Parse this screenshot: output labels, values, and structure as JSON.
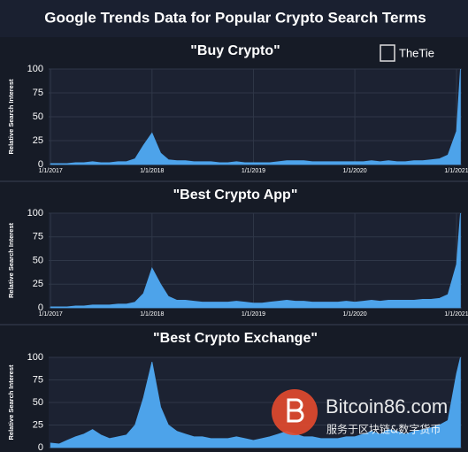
{
  "title": "Google Trends Data for Popular Crypto Search Terms",
  "logo": "TheTie",
  "watermark": {
    "site": "Bitcoin86.com",
    "tagline": "服务于区块链&数字货币"
  },
  "chart_data": [
    {
      "type": "area",
      "title": "\"Buy Crypto\"",
      "y_label": "Relative Search Interest",
      "color": "#4da3ea",
      "x": [
        "2017-01-01",
        "2017-02-01",
        "2017-03-01",
        "2017-04-01",
        "2017-05-01",
        "2017-06-01",
        "2017-07-01",
        "2017-08-01",
        "2017-09-01",
        "2017-10-01",
        "2017-11-01",
        "2017-12-01",
        "2018-01-01",
        "2018-02-01",
        "2018-03-01",
        "2018-04-01",
        "2018-05-01",
        "2018-06-01",
        "2018-07-01",
        "2018-08-01",
        "2018-09-01",
        "2018-10-01",
        "2018-11-01",
        "2018-12-01",
        "2019-01-01",
        "2019-02-01",
        "2019-03-01",
        "2019-04-01",
        "2019-05-01",
        "2019-06-01",
        "2019-07-01",
        "2019-08-01",
        "2019-09-01",
        "2019-10-01",
        "2019-11-01",
        "2019-12-01",
        "2020-01-01",
        "2020-02-01",
        "2020-03-01",
        "2020-04-01",
        "2020-05-01",
        "2020-06-01",
        "2020-07-01",
        "2020-08-01",
        "2020-09-01",
        "2020-10-01",
        "2020-11-01",
        "2020-12-01",
        "2021-01-01",
        "2021-01-15"
      ],
      "values": [
        1,
        1,
        1,
        2,
        2,
        3,
        2,
        2,
        3,
        3,
        6,
        20,
        33,
        12,
        5,
        4,
        4,
        3,
        3,
        3,
        2,
        2,
        3,
        2,
        2,
        2,
        2,
        3,
        4,
        4,
        4,
        3,
        3,
        3,
        3,
        3,
        3,
        3,
        4,
        3,
        4,
        3,
        3,
        4,
        4,
        5,
        6,
        10,
        35,
        100
      ],
      "xlim": [
        "2016-12-25",
        "2021-01-20"
      ],
      "xticks": [
        {
          "value": "2017-01-01",
          "label": "1/1/2017"
        },
        {
          "value": "2018-01-01",
          "label": "1/1/2018"
        },
        {
          "value": "2019-01-01",
          "label": "1/1/2019"
        },
        {
          "value": "2020-01-01",
          "label": "1/1/2020"
        },
        {
          "value": "2021-01-01",
          "label": "1/1/2021"
        }
      ],
      "ylim": [
        0,
        100
      ],
      "yticks": [
        0,
        25,
        50,
        75,
        100
      ],
      "grid": true
    },
    {
      "type": "area",
      "title": "\"Best Crypto App\"",
      "y_label": "Relative Search Interest",
      "color": "#4da3ea",
      "x": [
        "2017-01-01",
        "2017-02-01",
        "2017-03-01",
        "2017-04-01",
        "2017-05-01",
        "2017-06-01",
        "2017-07-01",
        "2017-08-01",
        "2017-09-01",
        "2017-10-01",
        "2017-11-01",
        "2017-12-01",
        "2018-01-01",
        "2018-02-01",
        "2018-03-01",
        "2018-04-01",
        "2018-05-01",
        "2018-06-01",
        "2018-07-01",
        "2018-08-01",
        "2018-09-01",
        "2018-10-01",
        "2018-11-01",
        "2018-12-01",
        "2019-01-01",
        "2019-02-01",
        "2019-03-01",
        "2019-04-01",
        "2019-05-01",
        "2019-06-01",
        "2019-07-01",
        "2019-08-01",
        "2019-09-01",
        "2019-10-01",
        "2019-11-01",
        "2019-12-01",
        "2020-01-01",
        "2020-02-01",
        "2020-03-01",
        "2020-04-01",
        "2020-05-01",
        "2020-06-01",
        "2020-07-01",
        "2020-08-01",
        "2020-09-01",
        "2020-10-01",
        "2020-11-01",
        "2020-12-01",
        "2021-01-01",
        "2021-01-15"
      ],
      "values": [
        1,
        1,
        1,
        2,
        2,
        3,
        3,
        3,
        4,
        4,
        6,
        15,
        42,
        25,
        12,
        8,
        8,
        7,
        6,
        6,
        6,
        6,
        7,
        6,
        5,
        5,
        6,
        7,
        8,
        7,
        7,
        6,
        6,
        6,
        6,
        7,
        6,
        7,
        8,
        7,
        8,
        8,
        8,
        8,
        9,
        9,
        10,
        14,
        46,
        100
      ],
      "xlim": [
        "2016-12-25",
        "2021-01-20"
      ],
      "xticks": [
        {
          "value": "2017-01-01",
          "label": "1/1/2017"
        },
        {
          "value": "2018-01-01",
          "label": "1/1/2018"
        },
        {
          "value": "2019-01-01",
          "label": "1/1/2019"
        },
        {
          "value": "2020-01-01",
          "label": "1/1/2020"
        },
        {
          "value": "2021-01-01",
          "label": "1/1/2021"
        }
      ],
      "ylim": [
        0,
        100
      ],
      "yticks": [
        0,
        25,
        50,
        75,
        100
      ],
      "grid": true
    },
    {
      "type": "area",
      "title": "\"Best Crypto Exchange\"",
      "y_label": "Relative Search Interest",
      "color": "#4da3ea",
      "x": [
        "2017-01-01",
        "2017-02-01",
        "2017-03-01",
        "2017-04-01",
        "2017-05-01",
        "2017-06-01",
        "2017-07-01",
        "2017-08-01",
        "2017-09-01",
        "2017-10-01",
        "2017-11-01",
        "2017-12-01",
        "2018-01-01",
        "2018-02-01",
        "2018-03-01",
        "2018-04-01",
        "2018-05-01",
        "2018-06-01",
        "2018-07-01",
        "2018-08-01",
        "2018-09-01",
        "2018-10-01",
        "2018-11-01",
        "2018-12-01",
        "2019-01-01",
        "2019-02-01",
        "2019-03-01",
        "2019-04-01",
        "2019-05-01",
        "2019-06-01",
        "2019-07-01",
        "2019-08-01",
        "2019-09-01",
        "2019-10-01",
        "2019-11-01",
        "2019-12-01",
        "2020-01-01",
        "2020-02-01",
        "2020-03-01",
        "2020-04-01",
        "2020-05-01",
        "2020-06-01",
        "2020-07-01",
        "2020-08-01",
        "2020-09-01",
        "2020-10-01",
        "2020-11-01",
        "2020-12-01",
        "2021-01-01",
        "2021-01-15"
      ],
      "values": [
        5,
        4,
        8,
        12,
        15,
        20,
        14,
        10,
        12,
        14,
        25,
        55,
        95,
        45,
        25,
        18,
        15,
        12,
        12,
        10,
        10,
        10,
        12,
        10,
        8,
        10,
        12,
        15,
        18,
        15,
        12,
        12,
        10,
        10,
        10,
        12,
        12,
        15,
        18,
        15,
        20,
        18,
        15,
        18,
        20,
        22,
        25,
        30,
        82,
        100
      ],
      "xlim": [
        "2016-12-25",
        "2021-01-20"
      ],
      "ylim": [
        0,
        100
      ],
      "yticks": [
        0,
        25,
        50,
        75,
        100
      ],
      "grid": true
    }
  ]
}
